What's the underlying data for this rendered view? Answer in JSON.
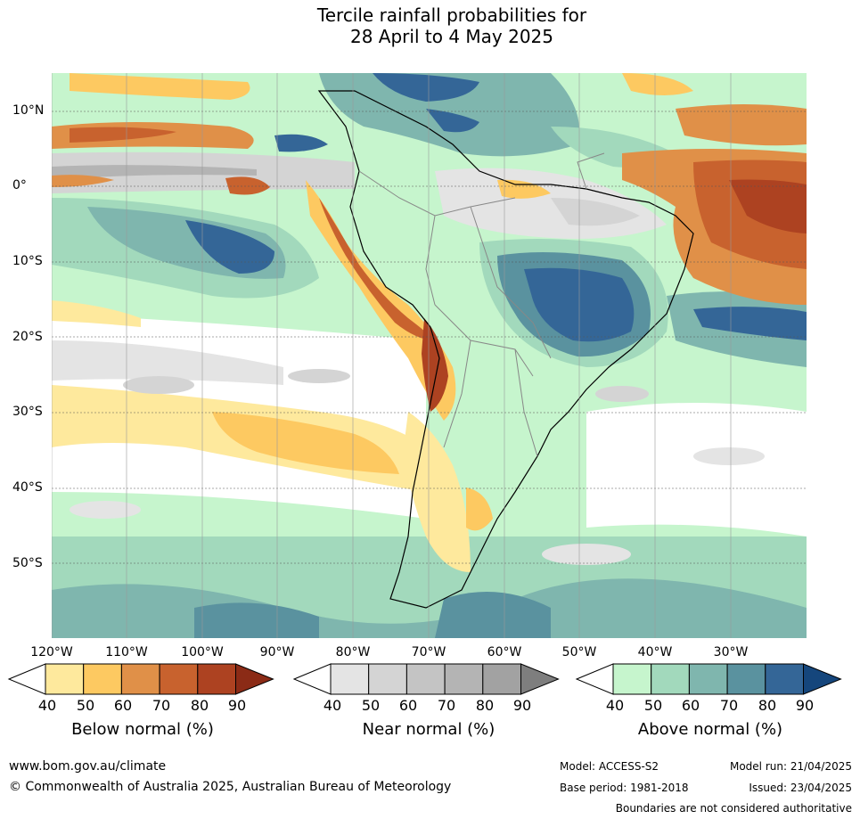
{
  "title": {
    "line1": "Tercile rainfall probabilities for",
    "line2": "28 April to 4 May 2025"
  },
  "map": {
    "region": "South America",
    "lat_labels": [
      "10°N",
      "0°",
      "10°S",
      "20°S",
      "30°S",
      "40°S",
      "50°S"
    ],
    "lon_labels": [
      "120°W",
      "110°W",
      "100°W",
      "90°W",
      "80°W",
      "70°W",
      "60°W",
      "50°W",
      "40°W",
      "30°W"
    ]
  },
  "colorbars": [
    {
      "label": "Below normal (%)",
      "ticks": [
        "40",
        "50",
        "60",
        "70",
        "80",
        "90"
      ],
      "colors": [
        "#ffffff",
        "#fee99d",
        "#fdc961",
        "#e09048",
        "#c8622e",
        "#ad4221",
        "#8b2b16"
      ]
    },
    {
      "label": "Near normal (%)",
      "ticks": [
        "40",
        "50",
        "60",
        "70",
        "80",
        "90"
      ],
      "colors": [
        "#ffffff",
        "#e4e4e4",
        "#d4d4d4",
        "#c4c4c4",
        "#b4b4b4",
        "#a2a2a2",
        "#7e7e7e"
      ]
    },
    {
      "label": "Above normal (%)",
      "ticks": [
        "40",
        "50",
        "60",
        "70",
        "80",
        "90"
      ],
      "colors": [
        "#ffffff",
        "#c6f5cd",
        "#a2d9bc",
        "#7fb6ae",
        "#5a929f",
        "#346697",
        "#15467c"
      ]
    }
  ],
  "footer": {
    "website": "www.bom.gov.au/climate",
    "copyright": "© Commonwealth of Australia 2025, Australian Bureau of Meteorology",
    "model": "Model: ACCESS-S2",
    "base_period": "Base period: 1981-2018",
    "model_run": "Model run: 21/04/2025",
    "issued": "Issued: 23/04/2025",
    "boundaries": "Boundaries are not considered authoritative"
  }
}
